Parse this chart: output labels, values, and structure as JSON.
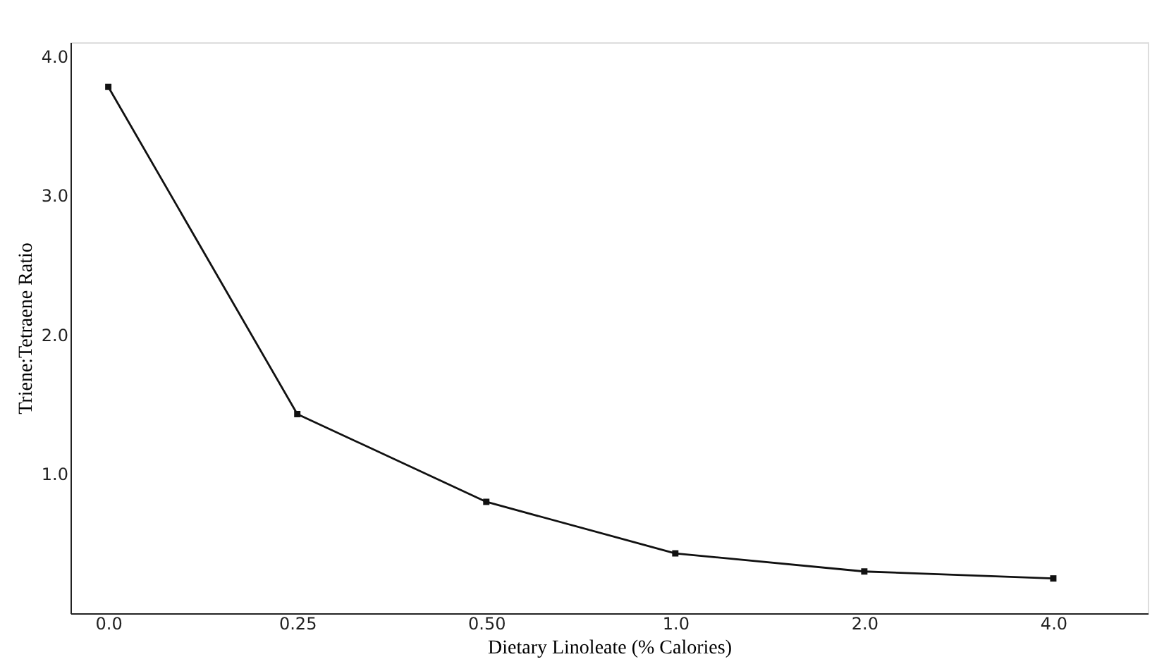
{
  "chart_data": {
    "type": "line",
    "xlabel": "Dietary Linoleate (% Calories)",
    "ylabel": "Triene:Tetraene Ratio",
    "categories": [
      "0.0",
      "0.25",
      "0.50",
      "1.0",
      "2.0",
      "4.0"
    ],
    "series": [
      {
        "color": "#111111",
        "values": [
          3.78,
          1.43,
          0.8,
          0.43,
          0.3,
          0.25
        ]
      }
    ],
    "ylim": [
      0,
      4.1
    ],
    "yticks": [
      {
        "value": 1,
        "label": "1.0"
      },
      {
        "value": 2,
        "label": "2.0"
      },
      {
        "value": 3,
        "label": "3.0"
      },
      {
        "value": 4,
        "label": "4.0"
      }
    ],
    "grid": false,
    "marker": "square",
    "line_style": "solid"
  }
}
